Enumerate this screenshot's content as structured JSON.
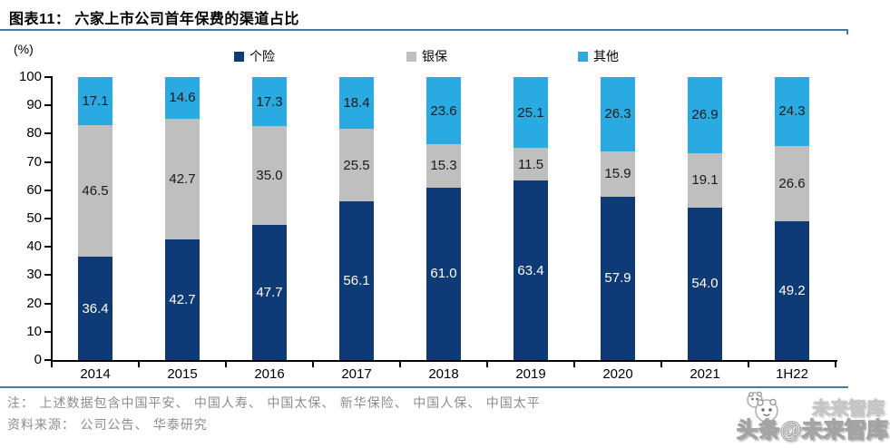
{
  "header": {
    "title": "图表11：  六家上市公司首年保费的渠道占比"
  },
  "chart_data": {
    "type": "bar",
    "stacked": true,
    "title": "六家上市公司首年保费的渠道占比",
    "unit_label": "(%)",
    "categories": [
      "2014",
      "2015",
      "2016",
      "2017",
      "2018",
      "2019",
      "2020",
      "2021",
      "1H22"
    ],
    "series": [
      {
        "name": "个险",
        "color": "#0e3a76",
        "label_color": "#ffffff",
        "values": [
          36.4,
          42.7,
          47.7,
          56.1,
          61.0,
          63.4,
          57.9,
          54.0,
          49.2
        ]
      },
      {
        "name": "银保",
        "color": "#bfbfbf",
        "label_color": "#1a1a1a",
        "values": [
          46.5,
          42.7,
          35.0,
          25.5,
          15.3,
          11.5,
          15.9,
          19.1,
          26.6
        ]
      },
      {
        "name": "其他",
        "color": "#29abe2",
        "label_color": "#1a1a1a",
        "values": [
          17.1,
          14.6,
          17.3,
          18.4,
          23.6,
          25.1,
          26.3,
          26.9,
          24.3
        ]
      }
    ],
    "ylim": [
      0,
      100
    ],
    "yticks": [
      0,
      10,
      20,
      30,
      40,
      50,
      60,
      70,
      80,
      90,
      100
    ],
    "legend_position": "top",
    "grid": false
  },
  "footer": {
    "note": "注：  上述数据包含中国平安、 中国人寿、 中国太保、 新华保险、 中国人保、 中国太平",
    "source": "资料来源：  公司公告、 华泰研究"
  },
  "watermark": {
    "line1": "未来智库",
    "line2": "头条@未来智库",
    "icon": "panda-avatar-icon"
  },
  "colors": {
    "rule": "#4d77a3",
    "note_text": "#8c8c8c",
    "axis": "#000000"
  }
}
